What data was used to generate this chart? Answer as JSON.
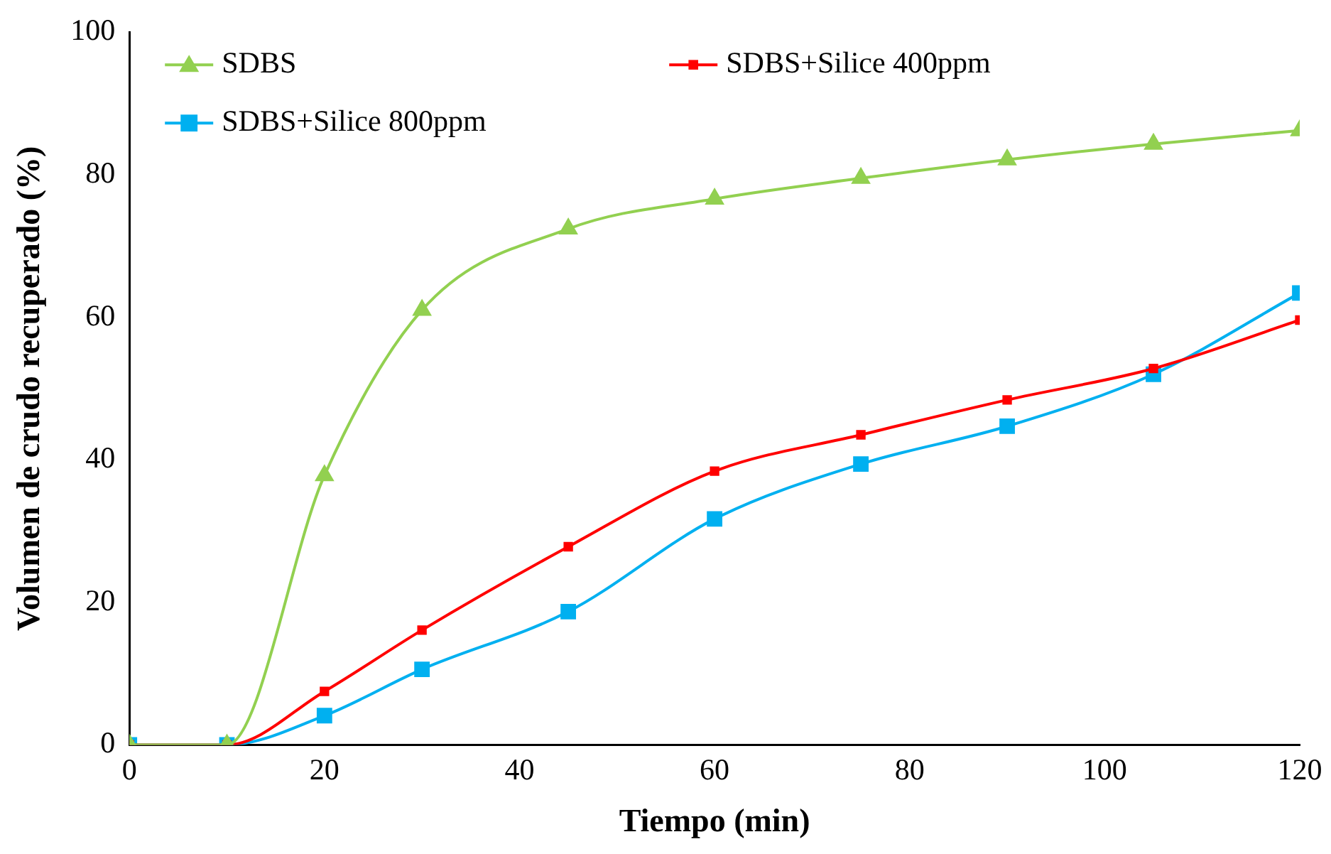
{
  "chart_data": {
    "type": "line",
    "xlabel": "Tiempo (min)",
    "ylabel": "Volumen de crudo recuperado (%)",
    "x": [
      0,
      10,
      20,
      30,
      45,
      60,
      75,
      90,
      105,
      120
    ],
    "series": [
      {
        "name": "SDBS",
        "color": "#92d050",
        "marker": "triangle",
        "values": [
          0,
          0,
          37.8,
          61,
          72.4,
          76.6,
          79.5,
          82.1,
          84.3,
          86.2
        ]
      },
      {
        "name": "SDBS+Silice 400ppm",
        "color": "#ff0000",
        "marker": "square",
        "values": [
          0,
          0,
          7.5,
          16.1,
          27.8,
          38.4,
          43.5,
          48.4,
          52.8,
          59.6
        ]
      },
      {
        "name": "SDBS+Silice 800ppm",
        "color": "#00b0f0",
        "marker": "square",
        "values": [
          0,
          0,
          4.1,
          10.6,
          18.7,
          31.7,
          39.4,
          44.7,
          52,
          63.4
        ]
      }
    ],
    "xlim": [
      0,
      120
    ],
    "xticks": [
      0,
      20,
      40,
      60,
      80,
      100,
      120
    ],
    "ylim": [
      0,
      100
    ],
    "yticks": [
      0,
      20,
      40,
      60,
      80,
      100
    ],
    "grid": false,
    "legend": "top left",
    "line_style": "solid"
  }
}
